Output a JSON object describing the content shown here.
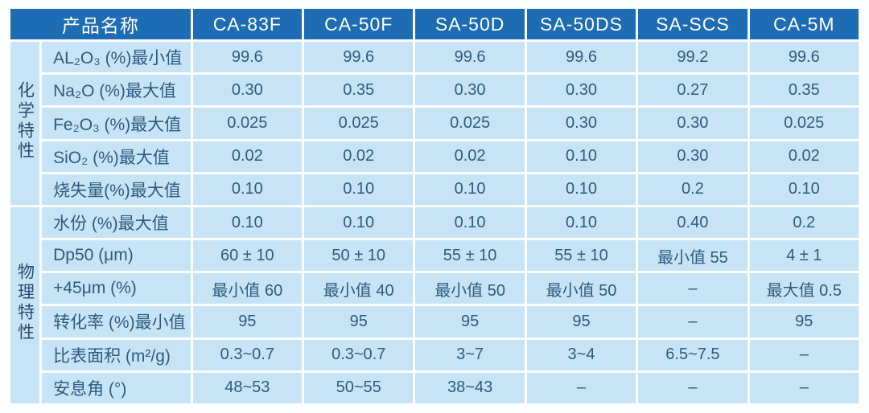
{
  "table": {
    "corner_header": "产品名称",
    "columns": [
      "CA-83F",
      "CA-50F",
      "SA-50D",
      "SA-50DS",
      "SA-SCS",
      "CA-5M"
    ],
    "groups": [
      {
        "label": "化学特性",
        "rows": [
          {
            "label": "AL₂O₃ (%)最小值",
            "values": [
              "99.6",
              "99.6",
              "99.6",
              "99.6",
              "99.2",
              "99.6"
            ]
          },
          {
            "label": "Na₂O (%)最大值",
            "values": [
              "0.30",
              "0.35",
              "0.30",
              "0.30",
              "0.27",
              "0.35"
            ]
          },
          {
            "label": "Fe₂O₃ (%)最大值",
            "values": [
              "0.025",
              "0.025",
              "0.025",
              "0.30",
              "0.30",
              "0.025"
            ]
          },
          {
            "label": "SiO₂ (%)最大值",
            "values": [
              "0.02",
              "0.02",
              "0.02",
              "0.10",
              "0.30",
              "0.02"
            ]
          },
          {
            "label": "烧失量(%)最大值",
            "values": [
              "0.10",
              "0.10",
              "0.10",
              "0.10",
              "0.2",
              "0.10"
            ]
          }
        ]
      },
      {
        "label": "物理特性",
        "rows": [
          {
            "label": "水份 (%)最大值",
            "values": [
              "0.10",
              "0.10",
              "0.10",
              "0.10",
              "0.40",
              "0.2"
            ]
          },
          {
            "label": "Dp50 (μm)",
            "values": [
              "60 ± 10",
              "50 ± 10",
              "55 ± 10",
              "55 ± 10",
              "最小值 55",
              "4 ± 1"
            ]
          },
          {
            "label": "+45μm (%)",
            "values": [
              "最小值 60",
              "最小值 40",
              "最小值 50",
              "最小值 50",
              "–",
              "最大值 0.5"
            ]
          },
          {
            "label": "转化率 (%)最小值",
            "values": [
              "95",
              "95",
              "95",
              "95",
              "–",
              "95"
            ]
          },
          {
            "label": "比表面积 (m²/g)",
            "values": [
              "0.3~0.7",
              "0.3~0.7",
              "3~7",
              "3~4",
              "6.5~7.5",
              "–"
            ]
          },
          {
            "label": "安息角 (°)",
            "values": [
              "48~53",
              "50~55",
              "38~43",
              "–",
              "–",
              "–"
            ]
          }
        ]
      }
    ]
  },
  "colors": {
    "header_bg": "#1e6cb3",
    "cell_bg": "#c7e4f7",
    "gridline": "#ffffff",
    "header_text": "#ffffff",
    "body_text": "#2e5b7e"
  }
}
